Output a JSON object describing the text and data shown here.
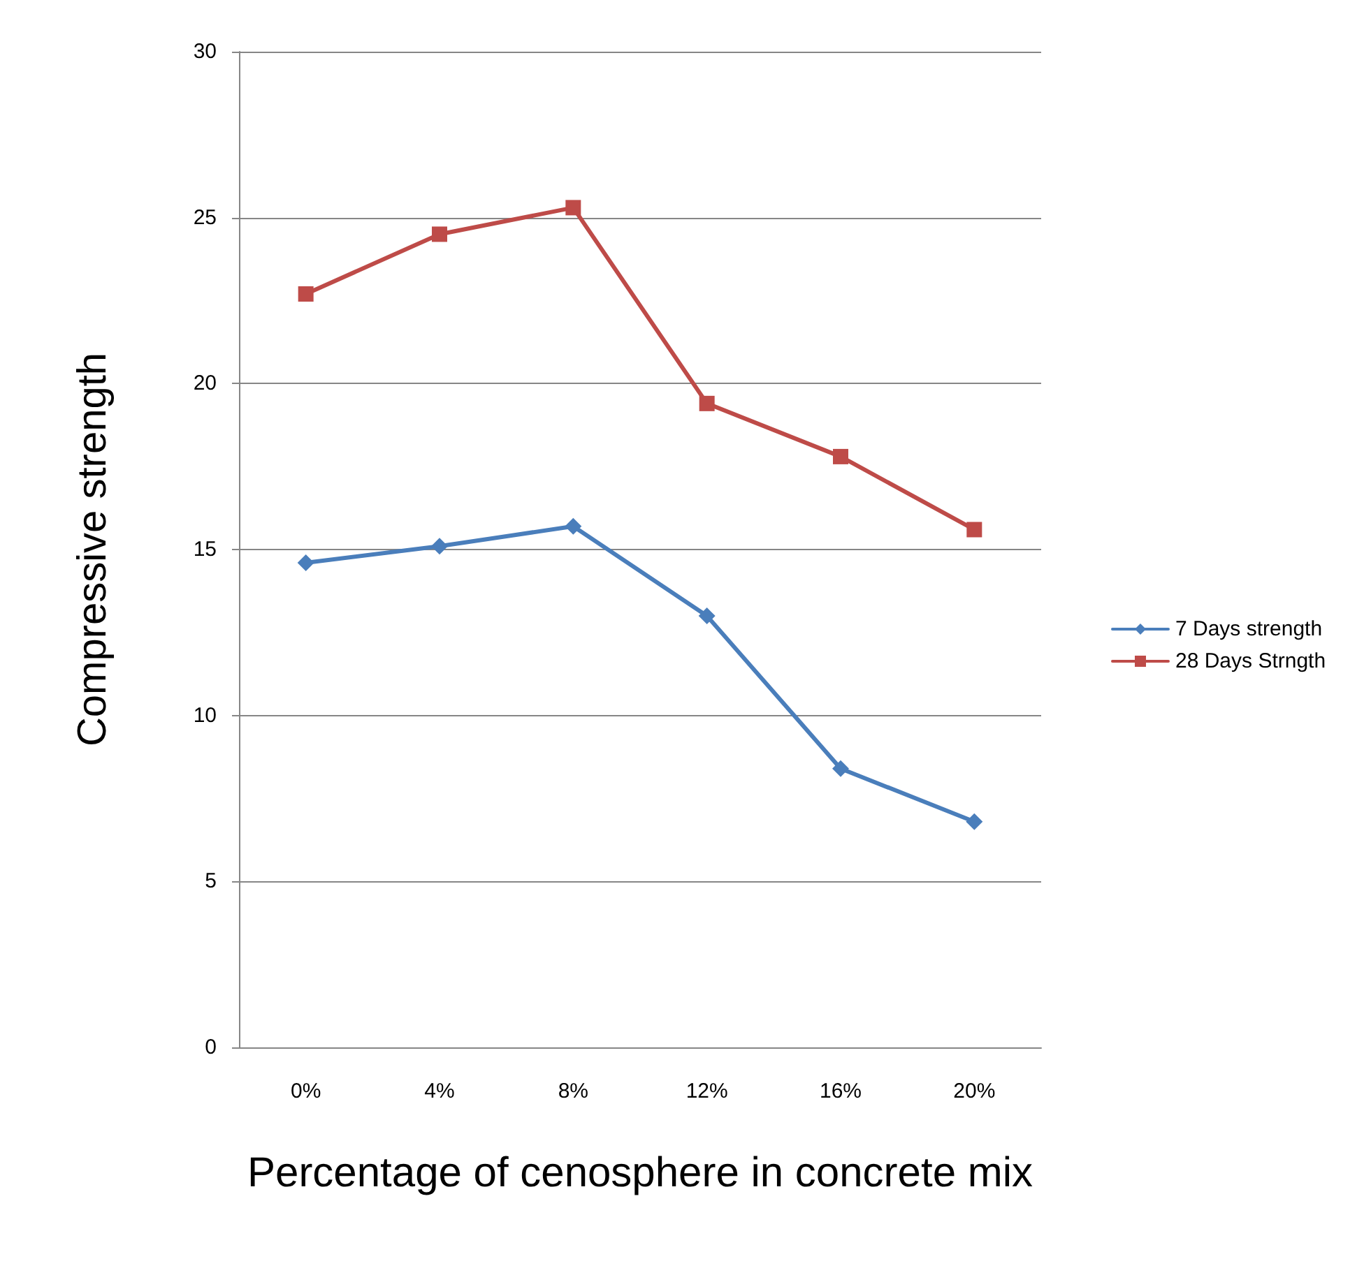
{
  "chart_data": {
    "type": "line",
    "xlabel": "Percentage of cenosphere in concrete mix",
    "ylabel": "Compressive strength",
    "categories": [
      "0%",
      "4%",
      "8%",
      "12%",
      "16%",
      "20%"
    ],
    "series": [
      {
        "name": "7 Days strength",
        "color": "#4a7ebb",
        "marker": "diamond",
        "values": [
          14.6,
          15.1,
          15.7,
          13.0,
          8.4,
          6.8
        ]
      },
      {
        "name": "28 Days Strngth",
        "color": "#be4b48",
        "marker": "square",
        "values": [
          22.7,
          24.5,
          25.3,
          19.4,
          17.8,
          15.6
        ]
      }
    ],
    "ylim": [
      0,
      30
    ],
    "yticks": [
      0,
      5,
      10,
      15,
      20,
      25,
      30
    ],
    "grid": "y",
    "legend": "right",
    "line_style": "solid"
  }
}
